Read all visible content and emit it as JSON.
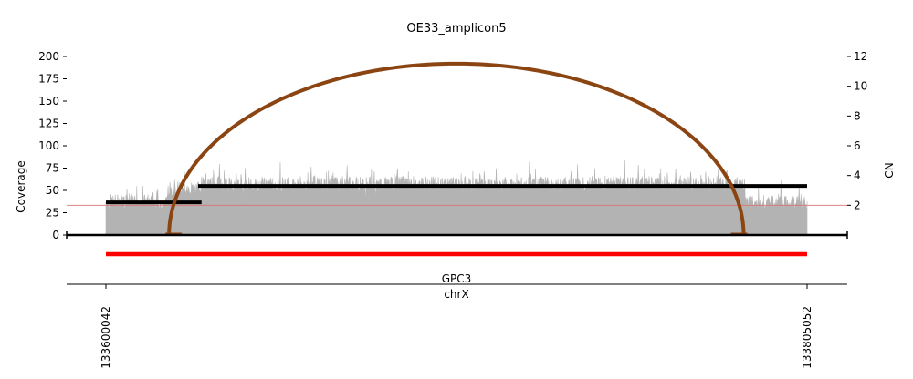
{
  "chart_data": {
    "type": "area",
    "title": "OE33_amplicon5",
    "ylabel": "Coverage",
    "ylabel_right": "CN",
    "ylim": [
      0,
      200
    ],
    "yticks": [
      0,
      25,
      50,
      75,
      100,
      125,
      150,
      175,
      200
    ],
    "ylim_right": [
      0,
      12
    ],
    "yticks_right": [
      2,
      4,
      6,
      8,
      10,
      12
    ],
    "xlim": [
      133600042,
      133805052
    ],
    "xtick_labels": [
      "133600042",
      "133805052"
    ],
    "chromosome": "chrX",
    "gene": "GPC3",
    "colors": {
      "coverage": "#b3b3b3",
      "segment": "#000000",
      "breakpoint_arc": "#8b4513",
      "gene_bar": "#ff0000",
      "reference_line": "#e07070"
    },
    "coverage_profile": [
      {
        "start": 133600042,
        "end": 133618500,
        "mean": 37
      },
      {
        "start": 133618500,
        "end": 133628000,
        "mean": 52
      },
      {
        "start": 133628000,
        "end": 133787000,
        "mean": 57
      },
      {
        "start": 133787000,
        "end": 133805052,
        "mean": 36
      }
    ],
    "cn_segments": [
      {
        "start": 133600042,
        "end": 133628000,
        "cn": 2.2
      },
      {
        "start": 133627000,
        "end": 133805052,
        "cn": 3.3
      }
    ],
    "reference_cn": 2,
    "breakpoint_arc": {
      "start": 133618500,
      "end": 133786500,
      "peak_coverage": 192
    },
    "gene_bar": {
      "start": 133600042,
      "end": 133805052
    }
  }
}
